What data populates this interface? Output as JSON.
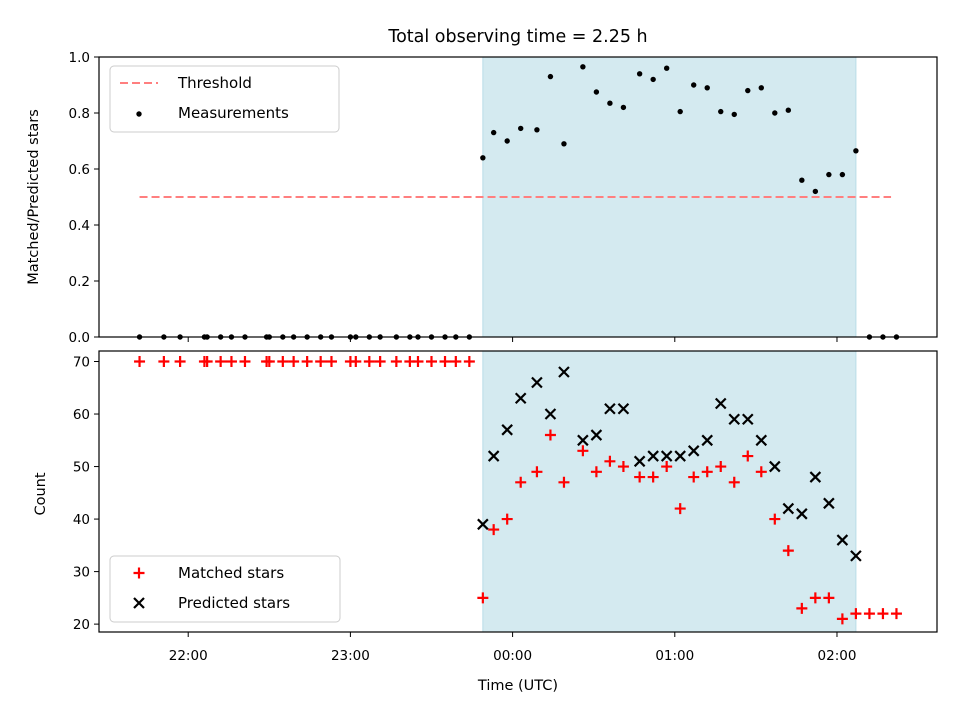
{
  "chart_data": [
    {
      "type": "scatter",
      "title": "Total observing time = 2.25 h",
      "xlabel": "",
      "ylabel": "Matched/Predicted stars",
      "ylim": [
        0,
        1.0
      ],
      "xlim": [
        "21:27",
        "02:37"
      ],
      "yticks": [
        "0.0",
        "0.2",
        "0.4",
        "0.6",
        "0.8",
        "1.0"
      ],
      "x_unit": "minutes relative to 00:00 UTC",
      "shaded_region": {
        "x": [
          "23:49",
          "02:07"
        ],
        "color": "#d4eaf0"
      },
      "legend": {
        "placement": "upper left",
        "entries": [
          "Threshold",
          "Measurements"
        ]
      },
      "threshold": {
        "name": "Threshold",
        "value": 0.5,
        "x": [
          "21:42",
          "02:20"
        ],
        "color": "#ff7f7f"
      },
      "series": [
        {
          "name": "Measurements",
          "color": "#000000",
          "x": [
            "21:42",
            "21:51",
            "21:57",
            "22:06",
            "22:07",
            "22:12",
            "22:16",
            "22:21",
            "22:29",
            "22:30",
            "22:35",
            "22:39",
            "22:44",
            "22:49",
            "22:53",
            "23:00",
            "23:02",
            "23:07",
            "23:11",
            "23:17",
            "23:22",
            "23:25",
            "23:30",
            "23:35",
            "23:39",
            "23:44",
            "23:49",
            "23:53",
            "23:58",
            "00:03",
            "00:09",
            "00:14",
            "00:19",
            "00:26",
            "00:31",
            "00:36",
            "00:41",
            "00:47",
            "00:52",
            "00:57",
            "01:02",
            "01:07",
            "01:12",
            "01:17",
            "01:22",
            "01:27",
            "01:32",
            "01:37",
            "01:42",
            "01:47",
            "01:52",
            "01:57",
            "02:02",
            "02:07",
            "02:12",
            "02:17",
            "02:22"
          ],
          "y": [
            0,
            0,
            0,
            0,
            0,
            0,
            0,
            0,
            0,
            0,
            0,
            0,
            0,
            0,
            0,
            0,
            0,
            0,
            0,
            0,
            0,
            0,
            0,
            0,
            0,
            0,
            0.64,
            0.73,
            0.7,
            0.745,
            0.74,
            0.93,
            0.69,
            0.965,
            0.875,
            0.835,
            0.82,
            0.94,
            0.92,
            0.96,
            0.805,
            0.9,
            0.89,
            0.805,
            0.795,
            0.88,
            0.89,
            0.8,
            0.81,
            0.56,
            0.52,
            0.58,
            0.58,
            0.665,
            0,
            0,
            0
          ]
        }
      ]
    },
    {
      "type": "scatter",
      "title": "",
      "xlabel": "Time (UTC)",
      "ylabel": "Count",
      "ylim": [
        18.5,
        72
      ],
      "xlim": [
        "21:27",
        "02:37"
      ],
      "yticks": [
        "20",
        "30",
        "40",
        "50",
        "60",
        "70"
      ],
      "xticks": [
        "22:00",
        "23:00",
        "00:00",
        "01:00",
        "02:00"
      ],
      "x_unit": "minutes relative to 00:00 UTC",
      "shaded_region": {
        "x": [
          "23:49",
          "02:07"
        ],
        "color": "#d4eaf0"
      },
      "legend": {
        "placement": "lower left",
        "entries": [
          "Matched stars",
          "Predicted stars"
        ]
      },
      "series": [
        {
          "name": "Matched stars",
          "marker": "plus",
          "color": "#ff0000",
          "x": [
            "21:42",
            "21:51",
            "21:57",
            "22:06",
            "22:07",
            "22:12",
            "22:16",
            "22:21",
            "22:29",
            "22:30",
            "22:35",
            "22:39",
            "22:44",
            "22:49",
            "22:53",
            "23:00",
            "23:02",
            "23:07",
            "23:11",
            "23:17",
            "23:22",
            "23:25",
            "23:30",
            "23:35",
            "23:39",
            "23:44",
            "23:49",
            "23:53",
            "23:58",
            "00:03",
            "00:09",
            "00:14",
            "00:19",
            "00:26",
            "00:31",
            "00:36",
            "00:41",
            "00:47",
            "00:52",
            "00:57",
            "01:02",
            "01:07",
            "01:12",
            "01:17",
            "01:22",
            "01:27",
            "01:32",
            "01:37",
            "01:42",
            "01:47",
            "01:52",
            "01:57",
            "02:02",
            "02:07",
            "02:12",
            "02:17",
            "02:22"
          ],
          "y": [
            70,
            70,
            70,
            70,
            70,
            70,
            70,
            70,
            70,
            70,
            70,
            70,
            70,
            70,
            70,
            70,
            70,
            70,
            70,
            70,
            70,
            70,
            70,
            70,
            70,
            70,
            25,
            38,
            40,
            47,
            49,
            56,
            47,
            53,
            49,
            51,
            50,
            48,
            48,
            50,
            42,
            48,
            49,
            50,
            47,
            52,
            49,
            40,
            34,
            23,
            25,
            25,
            21,
            22,
            22,
            22,
            22
          ]
        },
        {
          "name": "Predicted stars",
          "marker": "x",
          "color": "#000000",
          "x": [
            "23:49",
            "23:53",
            "23:58",
            "00:03",
            "00:09",
            "00:14",
            "00:19",
            "00:26",
            "00:31",
            "00:36",
            "00:41",
            "00:47",
            "00:52",
            "00:57",
            "01:02",
            "01:07",
            "01:12",
            "01:17",
            "01:22",
            "01:27",
            "01:32",
            "01:37",
            "01:42",
            "01:47",
            "01:52",
            "01:57",
            "02:02",
            "02:07"
          ],
          "y": [
            39,
            52,
            57,
            63,
            66,
            60,
            68,
            55,
            56,
            61,
            61,
            51,
            52,
            52,
            52,
            53,
            55,
            62,
            59,
            59,
            55,
            50,
            42,
            41,
            48,
            43,
            36,
            33
          ]
        }
      ]
    }
  ]
}
